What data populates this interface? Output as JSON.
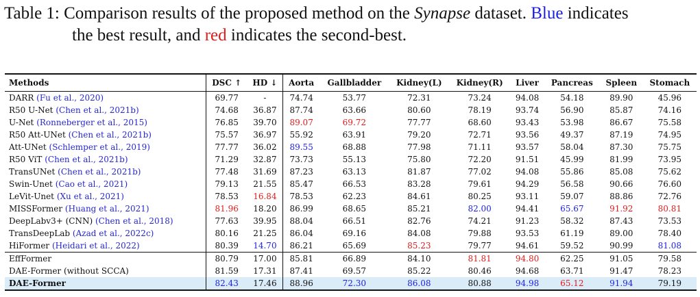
{
  "caption": {
    "prefix": "Table 1:  Comparison results of the proposed method on the ",
    "dataset": "Synapse",
    "mid": " dataset. ",
    "blue_word": "Blue",
    "after_blue": " indicates",
    "line2_a": "the best result, and ",
    "red_word": "red",
    "line2_b": " indicates the second-best."
  },
  "columns": [
    "Methods",
    "DSC ↑",
    "HD ↓",
    "Aorta",
    "Gallbladder",
    "Kidney(L)",
    "Kidney(R)",
    "Liver",
    "Pancreas",
    "Spleen",
    "Stomach"
  ],
  "colors": {
    "blue": "#1a1ee6",
    "red": "#e21a1a",
    "citation": "#2727d0",
    "highlight_row": "#dbecf9"
  },
  "rows": [
    {
      "name": "DARR ",
      "cite": "(Fu et al., 2020)",
      "values": [
        "69.77",
        "-",
        "74.74",
        "53.77",
        "72.31",
        "73.24",
        "94.08",
        "54.18",
        "89.90",
        "45.96"
      ],
      "hl": {}
    },
    {
      "name": "R50 U-Net ",
      "cite": "(Chen et al., 2021b)",
      "values": [
        "74.68",
        "36.87",
        "87.74",
        "63.66",
        "80.60",
        "78.19",
        "93.74",
        "56.90",
        "85.87",
        "74.16"
      ],
      "hl": {}
    },
    {
      "name": "U-Net ",
      "cite": "(Ronneberger et al., 2015)",
      "values": [
        "76.85",
        "39.70",
        "89.07",
        "69.72",
        "77.77",
        "68.60",
        "93.43",
        "53.98",
        "86.67",
        "75.58"
      ],
      "hl": {
        "2": "red",
        "3": "red"
      }
    },
    {
      "name": "R50 Att-UNet ",
      "cite": "(Chen et al., 2021b)",
      "values": [
        "75.57",
        "36.97",
        "55.92",
        "63.91",
        "79.20",
        "72.71",
        "93.56",
        "49.37",
        "87.19",
        "74.95"
      ],
      "hl": {}
    },
    {
      "name": "Att-UNet ",
      "cite": "(Schlemper et al., 2019)",
      "values": [
        "77.77",
        "36.02",
        "89.55",
        "68.88",
        "77.98",
        "71.11",
        "93.57",
        "58.04",
        "87.30",
        "75.75"
      ],
      "hl": {
        "2": "blue"
      }
    },
    {
      "name": "R50 ViT ",
      "cite": "(Chen et al., 2021b)",
      "values": [
        "71.29",
        "32.87",
        "73.73",
        "55.13",
        "75.80",
        "72.20",
        "91.51",
        "45.99",
        "81.99",
        "73.95"
      ],
      "hl": {}
    },
    {
      "name": "TransUNet ",
      "cite": "(Chen et al., 2021b)",
      "values": [
        "77.48",
        "31.69",
        "87.23",
        "63.13",
        "81.87",
        "77.02",
        "94.08",
        "55.86",
        "85.08",
        "75.62"
      ],
      "hl": {}
    },
    {
      "name": "Swin-Unet ",
      "cite": "(Cao et al., 2021)",
      "values": [
        "79.13",
        "21.55",
        "85.47",
        "66.53",
        "83.28",
        "79.61",
        "94.29",
        "56.58",
        "90.66",
        "76.60"
      ],
      "hl": {}
    },
    {
      "name": "LeVit-Unet ",
      "cite": "(Xu et al., 2021)",
      "values": [
        "78.53",
        "16.84",
        "78.53",
        "62.23",
        "84.61",
        "80.25",
        "93.11",
        "59.07",
        "88.86",
        "72.76"
      ],
      "hl": {
        "1": "red"
      }
    },
    {
      "name": "MISSFormer ",
      "cite": "(Huang et al., 2021)",
      "values": [
        "81.96",
        "18.20",
        "86.99",
        "68.65",
        "85.21",
        "82.00",
        "94.41",
        "65.67",
        "91.92",
        "80.81"
      ],
      "hl": {
        "0": "red",
        "5": "blue",
        "7": "blue",
        "8": "red",
        "9": "red"
      }
    },
    {
      "name": "DeepLabv3+ (CNN) ",
      "cite": "(Chen et al., 2018)",
      "values": [
        "77.63",
        "39.95",
        "88.04",
        "66.51",
        "82.76",
        "74.21",
        "91.23",
        "58.32",
        "87.43",
        "73.53"
      ],
      "hl": {}
    },
    {
      "name": "TransDeepLab ",
      "cite": "(Azad et al., 2022c)",
      "values": [
        "80.16",
        "21.25",
        "86.04",
        "69.16",
        "84.08",
        "79.88",
        "93.53",
        "61.19",
        "89.00",
        "78.40"
      ],
      "hl": {}
    },
    {
      "name": "HiFormer ",
      "cite": "(Heidari et al., 2022)",
      "values": [
        "80.39",
        "14.70",
        "86.21",
        "65.69",
        "85.23",
        "79.77",
        "94.61",
        "59.52",
        "90.99",
        "81.08"
      ],
      "hl": {
        "1": "blue",
        "4": "red",
        "9": "blue"
      }
    },
    {
      "name": "EffFormer",
      "cite": "",
      "values": [
        "80.79",
        "17.00",
        "85.81",
        "66.89",
        "84.10",
        "81.81",
        "94.80",
        "62.25",
        "91.05",
        "79.58"
      ],
      "hl": {
        "5": "red",
        "6": "red"
      },
      "sep": true
    },
    {
      "name": "DAE-Former (without SCCA)",
      "cite": "",
      "values": [
        "81.59",
        "17.31",
        "87.41",
        "69.57",
        "85.22",
        "80.46",
        "94.68",
        "63.71",
        "91.47",
        "78.23"
      ],
      "hl": {}
    },
    {
      "name": "DAE-Former",
      "cite": "",
      "values": [
        "82.43",
        "17.46",
        "88.96",
        "72.30",
        "86.08",
        "80.88",
        "94.98",
        "65.12",
        "91.94",
        "79.19"
      ],
      "hl": {
        "0": "blue",
        "3": "blue",
        "4": "blue",
        "6": "blue",
        "7": "red",
        "8": "blue"
      },
      "last": true
    }
  ]
}
